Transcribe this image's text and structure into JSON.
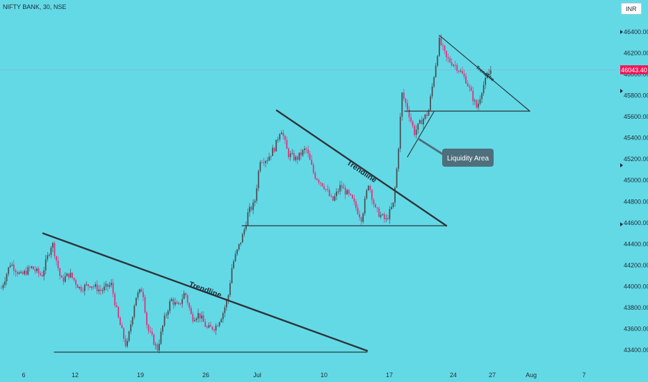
{
  "header": {
    "symbol_title": "NIFTY BANK, 30, NSE",
    "currency": "INR"
  },
  "colors": {
    "background": "#63D9E6",
    "up_candle": "#4a4f55",
    "down_candle": "#e0317a",
    "line": "#2d3338",
    "price_label": "#ec1a5a",
    "callout": "#4f6f7c"
  },
  "chart_data": {
    "type": "candlestick",
    "title": "NIFTY BANK, 30, NSE",
    "currency": "INR",
    "ylim": [
      43330,
      46530
    ],
    "y_ticks": [
      46400,
      46200,
      46000,
      45800,
      45600,
      45400,
      45200,
      45000,
      44800,
      44600,
      44400,
      44200,
      44000,
      43800,
      43600,
      43400
    ],
    "x_tick_labels": [
      "6",
      "12",
      "19",
      "26",
      "Jul",
      "10",
      "17",
      "24",
      "27",
      "Aug",
      "7"
    ],
    "last_price": 46043.4,
    "last_price_label": "46043.40",
    "price_path": [
      {
        "t": 0,
        "p": 43950
      },
      {
        "t": 15,
        "p": 44220
      },
      {
        "t": 30,
        "p": 44100
      },
      {
        "t": 45,
        "p": 44180
      },
      {
        "t": 60,
        "p": 44100
      },
      {
        "t": 75,
        "p": 44420
      },
      {
        "t": 88,
        "p": 44050
      },
      {
        "t": 100,
        "p": 44120
      },
      {
        "t": 115,
        "p": 43980
      },
      {
        "t": 130,
        "p": 44020
      },
      {
        "t": 145,
        "p": 43960
      },
      {
        "t": 160,
        "p": 44020
      },
      {
        "t": 170,
        "p": 43700
      },
      {
        "t": 182,
        "p": 43420
      },
      {
        "t": 195,
        "p": 43900
      },
      {
        "t": 205,
        "p": 43980
      },
      {
        "t": 212,
        "p": 43600
      },
      {
        "t": 220,
        "p": 43500
      },
      {
        "t": 226,
        "p": 43400
      },
      {
        "t": 236,
        "p": 43680
      },
      {
        "t": 246,
        "p": 43880
      },
      {
        "t": 256,
        "p": 43800
      },
      {
        "t": 266,
        "p": 43950
      },
      {
        "t": 276,
        "p": 43700
      },
      {
        "t": 286,
        "p": 43740
      },
      {
        "t": 298,
        "p": 43600
      },
      {
        "t": 310,
        "p": 43620
      },
      {
        "t": 320,
        "p": 43740
      },
      {
        "t": 328,
        "p": 43900
      },
      {
        "t": 334,
        "p": 44200
      },
      {
        "t": 342,
        "p": 44350
      },
      {
        "t": 350,
        "p": 44500
      },
      {
        "t": 357,
        "p": 44700
      },
      {
        "t": 366,
        "p": 44780
      },
      {
        "t": 374,
        "p": 45200
      },
      {
        "t": 384,
        "p": 45200
      },
      {
        "t": 396,
        "p": 45320
      },
      {
        "t": 404,
        "p": 45500
      },
      {
        "t": 414,
        "p": 45250
      },
      {
        "t": 426,
        "p": 45200
      },
      {
        "t": 440,
        "p": 45300
      },
      {
        "t": 452,
        "p": 45050
      },
      {
        "t": 466,
        "p": 44950
      },
      {
        "t": 478,
        "p": 44800
      },
      {
        "t": 490,
        "p": 44950
      },
      {
        "t": 506,
        "p": 44820
      },
      {
        "t": 520,
        "p": 44640
      },
      {
        "t": 530,
        "p": 44980
      },
      {
        "t": 540,
        "p": 44720
      },
      {
        "t": 555,
        "p": 44620
      },
      {
        "t": 566,
        "p": 44780
      },
      {
        "t": 572,
        "p": 45200
      },
      {
        "t": 578,
        "p": 45820
      },
      {
        "t": 586,
        "p": 45680
      },
      {
        "t": 596,
        "p": 45450
      },
      {
        "t": 606,
        "p": 45560
      },
      {
        "t": 616,
        "p": 45640
      },
      {
        "t": 622,
        "p": 45900
      },
      {
        "t": 632,
        "p": 46320
      },
      {
        "t": 642,
        "p": 46150
      },
      {
        "t": 656,
        "p": 46080
      },
      {
        "t": 670,
        "p": 45950
      },
      {
        "t": 680,
        "p": 45780
      },
      {
        "t": 686,
        "p": 45680
      },
      {
        "t": 694,
        "p": 45880
      },
      {
        "t": 706,
        "p": 46043
      }
    ],
    "annotations": {
      "trendline_label": "Trendline",
      "callout_label": "Liquidity Area"
    }
  }
}
